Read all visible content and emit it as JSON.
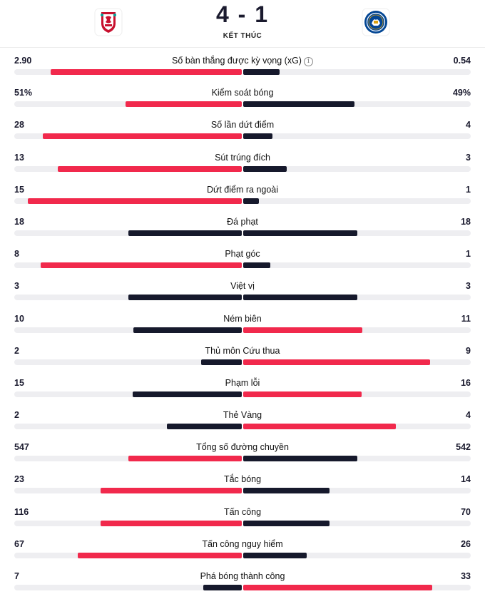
{
  "match": {
    "score": "4 - 1",
    "status": "KẾT THÚC",
    "home_logo": "liverpool-crest",
    "away_logo": "chelsea-crest"
  },
  "colors": {
    "leading": "#f1294c",
    "trailing": "#16192c",
    "track": "#eeeef1"
  },
  "stats": [
    {
      "label": "Số bàn thắng được kỳ vọng (xG)",
      "home": "2.90",
      "away": "0.54",
      "home_frac": 0.84,
      "away_frac": 0.16,
      "home_color": "red",
      "away_color": "dark",
      "info": true
    },
    {
      "label": "Kiểm soát bóng",
      "home": "51%",
      "away": "49%",
      "home_frac": 0.51,
      "away_frac": 0.49,
      "home_color": "red",
      "away_color": "dark"
    },
    {
      "label": "Số lần dứt điểm",
      "home": "28",
      "away": "4",
      "home_frac": 0.875,
      "away_frac": 0.13,
      "home_color": "red",
      "away_color": "dark"
    },
    {
      "label": "Sút trúng đích",
      "home": "13",
      "away": "3",
      "home_frac": 0.81,
      "away_frac": 0.19,
      "home_color": "red",
      "away_color": "dark"
    },
    {
      "label": "Dứt điểm ra ngoài",
      "home": "15",
      "away": "1",
      "home_frac": 0.94,
      "away_frac": 0.07,
      "home_color": "red",
      "away_color": "dark"
    },
    {
      "label": "Đá phạt",
      "home": "18",
      "away": "18",
      "home_frac": 0.5,
      "away_frac": 0.5,
      "home_color": "dark",
      "away_color": "dark"
    },
    {
      "label": "Phạt góc",
      "home": "8",
      "away": "1",
      "home_frac": 0.885,
      "away_frac": 0.12,
      "home_color": "red",
      "away_color": "dark"
    },
    {
      "label": "Việt vị",
      "home": "3",
      "away": "3",
      "home_frac": 0.5,
      "away_frac": 0.5,
      "home_color": "dark",
      "away_color": "dark"
    },
    {
      "label": "Ném biên",
      "home": "10",
      "away": "11",
      "home_frac": 0.475,
      "away_frac": 0.525,
      "home_color": "dark",
      "away_color": "red"
    },
    {
      "label": "Thủ môn Cứu thua",
      "home": "2",
      "away": "9",
      "home_frac": 0.18,
      "away_frac": 0.82,
      "home_color": "dark",
      "away_color": "red"
    },
    {
      "label": "Phạm lỗi",
      "home": "15",
      "away": "16",
      "home_frac": 0.48,
      "away_frac": 0.52,
      "home_color": "dark",
      "away_color": "red"
    },
    {
      "label": "Thẻ Vàng",
      "home": "2",
      "away": "4",
      "home_frac": 0.33,
      "away_frac": 0.67,
      "home_color": "dark",
      "away_color": "red"
    },
    {
      "label": "Tổng số đường chuyền",
      "home": "547",
      "away": "542",
      "home_frac": 0.5,
      "away_frac": 0.5,
      "home_color": "red",
      "away_color": "dark"
    },
    {
      "label": "Tắc bóng",
      "home": "23",
      "away": "14",
      "home_frac": 0.62,
      "away_frac": 0.38,
      "home_color": "red",
      "away_color": "dark"
    },
    {
      "label": "Tấn công",
      "home": "116",
      "away": "70",
      "home_frac": 0.62,
      "away_frac": 0.38,
      "home_color": "red",
      "away_color": "dark"
    },
    {
      "label": "Tấn công nguy hiểm",
      "home": "67",
      "away": "26",
      "home_frac": 0.72,
      "away_frac": 0.28,
      "home_color": "red",
      "away_color": "dark"
    },
    {
      "label": "Phá bóng thành công",
      "home": "7",
      "away": "33",
      "home_frac": 0.17,
      "away_frac": 0.83,
      "home_color": "dark",
      "away_color": "red"
    }
  ]
}
